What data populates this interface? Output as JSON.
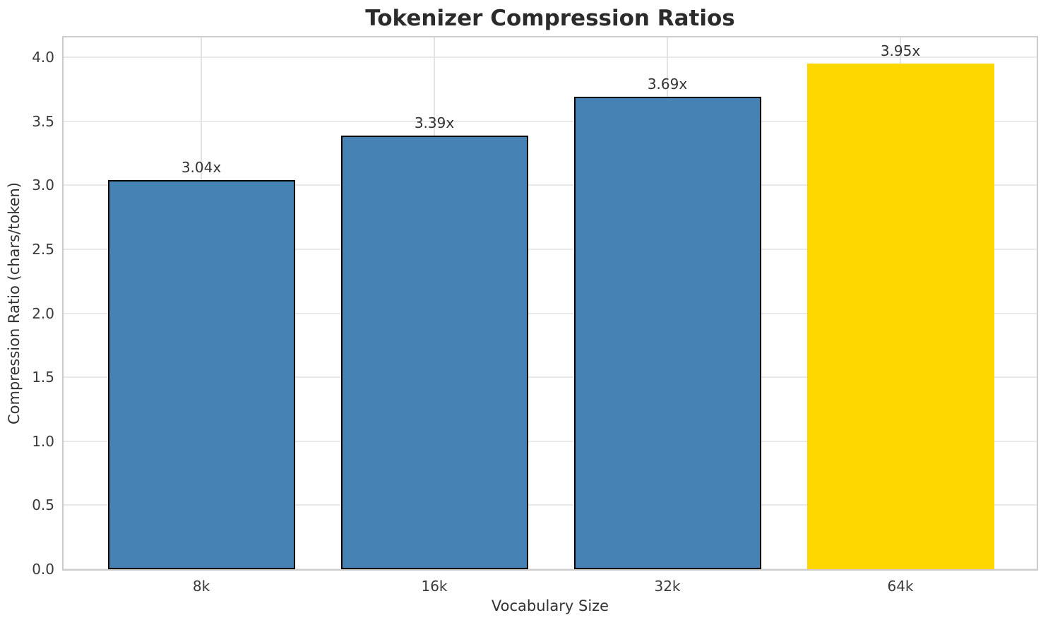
{
  "chart_data": {
    "type": "bar",
    "title": "Tokenizer Compression Ratios",
    "xlabel": "Vocabulary Size",
    "ylabel": "Compression Ratio (chars/token)",
    "categories": [
      "8k",
      "16k",
      "32k",
      "64k"
    ],
    "values": [
      3.04,
      3.39,
      3.69,
      3.95
    ],
    "bar_value_labels": [
      "3.04x",
      "3.39x",
      "3.69x",
      "3.95x"
    ],
    "bar_colors": [
      "#4682B4",
      "#4682B4",
      "#4682B4",
      "#FFD700"
    ],
    "bar_edge_colors": [
      "#000000",
      "#000000",
      "#000000",
      "none"
    ],
    "ylim": [
      0,
      4.1545
    ],
    "yticks": [
      0.0,
      0.5,
      1.0,
      1.5,
      2.0,
      2.5,
      3.0,
      3.5,
      4.0
    ],
    "ytick_labels": [
      "0.0",
      "0.5",
      "1.0",
      "1.5",
      "2.0",
      "2.5",
      "3.0",
      "3.5",
      "4.0"
    ],
    "grid": true,
    "legend": "none",
    "colors": {
      "bar_blue": "#4682B4",
      "bar_gold": "#FFD700",
      "text": "#333333",
      "grid": "#e9e9e9",
      "spine": "#cccccc",
      "background": "#ffffff"
    }
  }
}
